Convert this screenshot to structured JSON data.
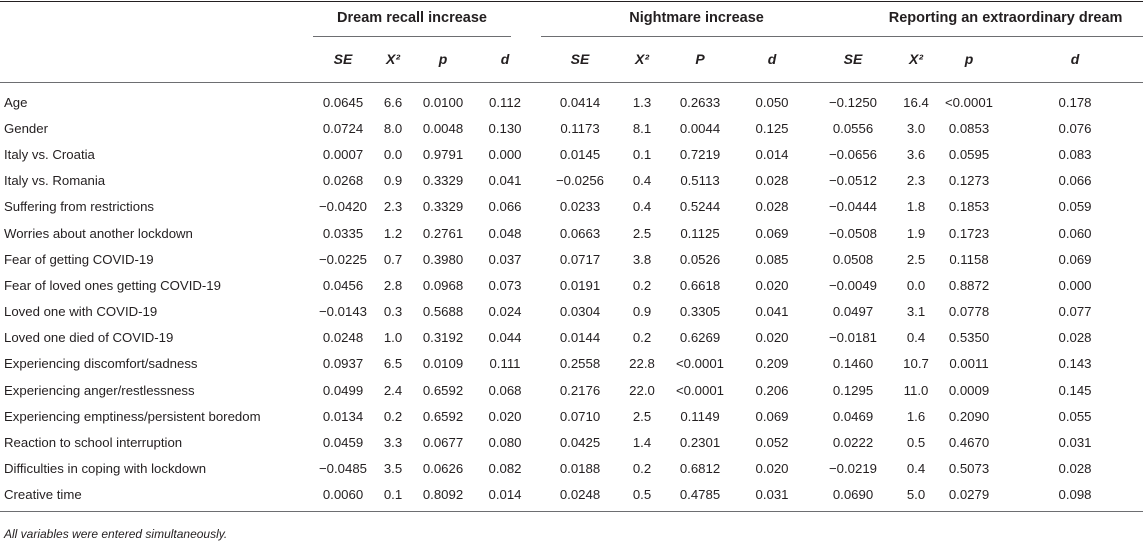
{
  "groups": {
    "dream_recall": "Dream recall increase",
    "nightmare": "Nightmare increase",
    "extraordinary": "Reporting an extraordinary dream"
  },
  "subheaders": {
    "dream_recall": [
      "SE",
      "X²",
      "p",
      "d"
    ],
    "nightmare": [
      "SE",
      "X²",
      "P",
      "d"
    ],
    "extraordinary": [
      "SE",
      "X²",
      "p",
      "d"
    ]
  },
  "rows": [
    {
      "label": "Age",
      "values": [
        "0.0645",
        "6.6",
        "0.0100",
        "0.112",
        "0.0414",
        "1.3",
        "0.2633",
        "0.050",
        "−0.1250",
        "16.4",
        "<0.0001",
        "0.178"
      ]
    },
    {
      "label": "Gender",
      "values": [
        "0.0724",
        "8.0",
        "0.0048",
        "0.130",
        "0.1173",
        "8.1",
        "0.0044",
        "0.125",
        "0.0556",
        "3.0",
        "0.0853",
        "0.076"
      ]
    },
    {
      "label": "Italy vs. Croatia",
      "values": [
        "0.0007",
        "0.0",
        "0.9791",
        "0.000",
        "0.0145",
        "0.1",
        "0.7219",
        "0.014",
        "−0.0656",
        "3.6",
        "0.0595",
        "0.083"
      ]
    },
    {
      "label": "Italy vs. Romania",
      "values": [
        "0.0268",
        "0.9",
        "0.3329",
        "0.041",
        "−0.0256",
        "0.4",
        "0.5113",
        "0.028",
        "−0.0512",
        "2.3",
        "0.1273",
        "0.066"
      ]
    },
    {
      "label": "Suffering from restrictions",
      "values": [
        "−0.0420",
        "2.3",
        "0.3329",
        "0.066",
        "0.0233",
        "0.4",
        "0.5244",
        "0.028",
        "−0.0444",
        "1.8",
        "0.1853",
        "0.059"
      ]
    },
    {
      "label": "Worries about another lockdown",
      "values": [
        "0.0335",
        "1.2",
        "0.2761",
        "0.048",
        "0.0663",
        "2.5",
        "0.1125",
        "0.069",
        "−0.0508",
        "1.9",
        "0.1723",
        "0.060"
      ]
    },
    {
      "label": "Fear of getting COVID-19",
      "values": [
        "−0.0225",
        "0.7",
        "0.3980",
        "0.037",
        "0.0717",
        "3.8",
        "0.0526",
        "0.085",
        "0.0508",
        "2.5",
        "0.1158",
        "0.069"
      ]
    },
    {
      "label": "Fear of loved ones getting COVID-19",
      "values": [
        "0.0456",
        "2.8",
        "0.0968",
        "0.073",
        "0.0191",
        "0.2",
        "0.6618",
        "0.020",
        "−0.0049",
        "0.0",
        "0.8872",
        "0.000"
      ]
    },
    {
      "label": "Loved one with COVID-19",
      "values": [
        "−0.0143",
        "0.3",
        "0.5688",
        "0.024",
        "0.0304",
        "0.9",
        "0.3305",
        "0.041",
        "0.0497",
        "3.1",
        "0.0778",
        "0.077"
      ]
    },
    {
      "label": "Loved one died of COVID-19",
      "values": [
        "0.0248",
        "1.0",
        "0.3192",
        "0.044",
        "0.0144",
        "0.2",
        "0.6269",
        "0.020",
        "−0.0181",
        "0.4",
        "0.5350",
        "0.028"
      ]
    },
    {
      "label": "Experiencing discomfort/sadness",
      "values": [
        "0.0937",
        "6.5",
        "0.0109",
        "0.111",
        "0.2558",
        "22.8",
        "<0.0001",
        "0.209",
        "0.1460",
        "10.7",
        "0.0011",
        "0.143"
      ]
    },
    {
      "label": "Experiencing anger/restlessness",
      "values": [
        "0.0499",
        "2.4",
        "0.6592",
        "0.068",
        "0.2176",
        "22.0",
        "<0.0001",
        "0.206",
        "0.1295",
        "11.0",
        "0.0009",
        "0.145"
      ]
    },
    {
      "label": "Experiencing emptiness/persistent boredom",
      "values": [
        "0.0134",
        "0.2",
        "0.6592",
        "0.020",
        "0.0710",
        "2.5",
        "0.1149",
        "0.069",
        "0.0469",
        "1.6",
        "0.2090",
        "0.055"
      ]
    },
    {
      "label": "Reaction to school interruption",
      "values": [
        "0.0459",
        "3.3",
        "0.0677",
        "0.080",
        "0.0425",
        "1.4",
        "0.2301",
        "0.052",
        "0.0222",
        "0.5",
        "0.4670",
        "0.031"
      ]
    },
    {
      "label": "Difficulties in coping with lockdown",
      "values": [
        "−0.0485",
        "3.5",
        "0.0626",
        "0.082",
        "0.0188",
        "0.2",
        "0.6812",
        "0.020",
        "−0.0219",
        "0.4",
        "0.5073",
        "0.028"
      ]
    },
    {
      "label": "Creative time",
      "values": [
        "0.0060",
        "0.1",
        "0.8092",
        "0.014",
        "0.0248",
        "0.5",
        "0.4785",
        "0.031",
        "0.0690",
        "5.0",
        "0.0279",
        "0.098"
      ]
    }
  ],
  "footnote": "All variables were entered simultaneously."
}
